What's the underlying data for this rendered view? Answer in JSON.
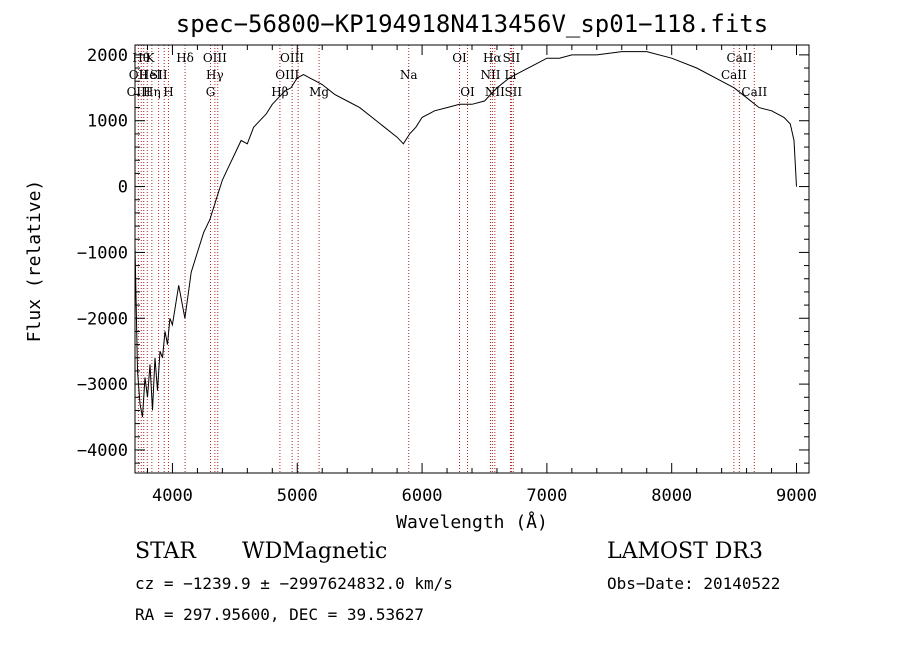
{
  "chart_data": {
    "type": "line",
    "title": "spec−56800−KP194918N413456V_sp01−118.fits",
    "xlabel": "Wavelength (Å)",
    "ylabel": "Flux (relative)",
    "xlim": [
      3700,
      9100
    ],
    "ylim": [
      -4350,
      2150
    ],
    "xticks": [
      4000,
      5000,
      6000,
      7000,
      8000,
      9000
    ],
    "xtick_labels": [
      "4000",
      "5000",
      "6000",
      "7000",
      "8000",
      "9000"
    ],
    "yticks": [
      -4000,
      -3000,
      -2000,
      -1000,
      0,
      1000,
      2000
    ],
    "ytick_labels": [
      "−4000",
      "−3000",
      "−2000",
      "−1000",
      "0",
      "1000",
      "2000"
    ],
    "grid": false,
    "series_color": "#000000",
    "line_marker_color": "#b22222",
    "series": [
      {
        "x": [
          3700,
          3720,
          3740,
          3760,
          3780,
          3800,
          3820,
          3840,
          3860,
          3880,
          3900,
          3920,
          3940,
          3960,
          3980,
          4000,
          4050,
          4100,
          4150,
          4200,
          4250,
          4300,
          4350,
          4400,
          4450,
          4500,
          4550,
          4600,
          4650,
          4700,
          4750,
          4800,
          4850,
          4900,
          4950,
          5000,
          5050,
          5100,
          5150,
          5200,
          5300,
          5400,
          5500,
          5600,
          5700,
          5800,
          5850,
          5900,
          5950,
          6000,
          6100,
          6200,
          6300,
          6400,
          6500,
          6600,
          6700,
          6800,
          6900,
          7000,
          7100,
          7200,
          7400,
          7600,
          7800,
          8000,
          8200,
          8400,
          8500,
          8600,
          8700,
          8800,
          8900,
          8950,
          8980,
          9000
        ],
        "y": [
          -900,
          -2800,
          -3300,
          -3500,
          -2900,
          -3200,
          -2700,
          -3400,
          -2600,
          -3100,
          -2500,
          -2600,
          -2200,
          -2400,
          -2000,
          -2100,
          -1500,
          -2000,
          -1300,
          -1000,
          -700,
          -500,
          -200,
          100,
          300,
          500,
          700,
          650,
          900,
          1000,
          1100,
          1250,
          1350,
          1450,
          1500,
          1650,
          1700,
          1650,
          1600,
          1550,
          1400,
          1300,
          1200,
          1050,
          900,
          750,
          650,
          800,
          900,
          1050,
          1150,
          1200,
          1250,
          1250,
          1300,
          1500,
          1650,
          1750,
          1850,
          1950,
          1950,
          2000,
          2000,
          2050,
          2050,
          1950,
          1800,
          1600,
          1500,
          1350,
          1200,
          1150,
          1050,
          950,
          700,
          0
        ]
      }
    ],
    "line_labels": [
      {
        "wave": 3750,
        "label": "Hθ",
        "row": 0
      },
      {
        "wave": 3727,
        "label": "OII",
        "row": 1
      },
      {
        "wave": 3729,
        "label": "OIII",
        "row": 2
      },
      {
        "wave": 3820,
        "label": "K",
        "row": 0
      },
      {
        "wave": 3820,
        "label": "HeI",
        "row": 1
      },
      {
        "wave": 3835,
        "label": "Hη",
        "row": 2
      },
      {
        "wave": 3890,
        "label": "SII",
        "row": 1
      },
      {
        "wave": 3968,
        "label": "H",
        "row": 2
      },
      {
        "wave": 4101,
        "label": "Hδ",
        "row": 0
      },
      {
        "wave": 4340,
        "label": "OIII",
        "row": 0
      },
      {
        "wave": 4340,
        "label": "Hγ",
        "row": 1
      },
      {
        "wave": 4305,
        "label": "G",
        "row": 2
      },
      {
        "wave": 4958,
        "label": "OIII",
        "row": 0
      },
      {
        "wave": 4920,
        "label": "OIII",
        "row": 1
      },
      {
        "wave": 4861,
        "label": "Hβ",
        "row": 2
      },
      {
        "wave": 5175,
        "label": "Mg",
        "row": 2
      },
      {
        "wave": 5893,
        "label": "Na",
        "row": 1
      },
      {
        "wave": 6300,
        "label": "OI",
        "row": 0
      },
      {
        "wave": 6364,
        "label": "OI",
        "row": 2
      },
      {
        "wave": 6563,
        "label": "Hα",
        "row": 0
      },
      {
        "wave": 6548,
        "label": "NII",
        "row": 1
      },
      {
        "wave": 6583,
        "label": "NII",
        "row": 2
      },
      {
        "wave": 6716,
        "label": "SII",
        "row": 0
      },
      {
        "wave": 6708,
        "label": "Li",
        "row": 1
      },
      {
        "wave": 6731,
        "label": "SII",
        "row": 2
      },
      {
        "wave": 8542,
        "label": "CaII",
        "row": 0
      },
      {
        "wave": 8498,
        "label": "CaII",
        "row": 1
      },
      {
        "wave": 8662,
        "label": "CaII",
        "row": 2
      }
    ],
    "line_waves": [
      3727,
      3750,
      3770,
      3798,
      3835,
      3889,
      3934,
      3968,
      4101,
      4305,
      4340,
      4363,
      4861,
      4959,
      5007,
      5175,
      5893,
      6300,
      6364,
      6548,
      6563,
      6583,
      6708,
      6716,
      6731,
      8498,
      8542,
      8662
    ]
  },
  "info": {
    "object_class": "STAR",
    "subclass": "WDMagnetic",
    "survey": "LAMOST DR3",
    "cz": "cz = −1239.9 ± −2997624832.0 km/s",
    "obs_date": "Obs−Date: 20140522",
    "coords": "RA = 297.95600, DEC =  39.53627"
  }
}
